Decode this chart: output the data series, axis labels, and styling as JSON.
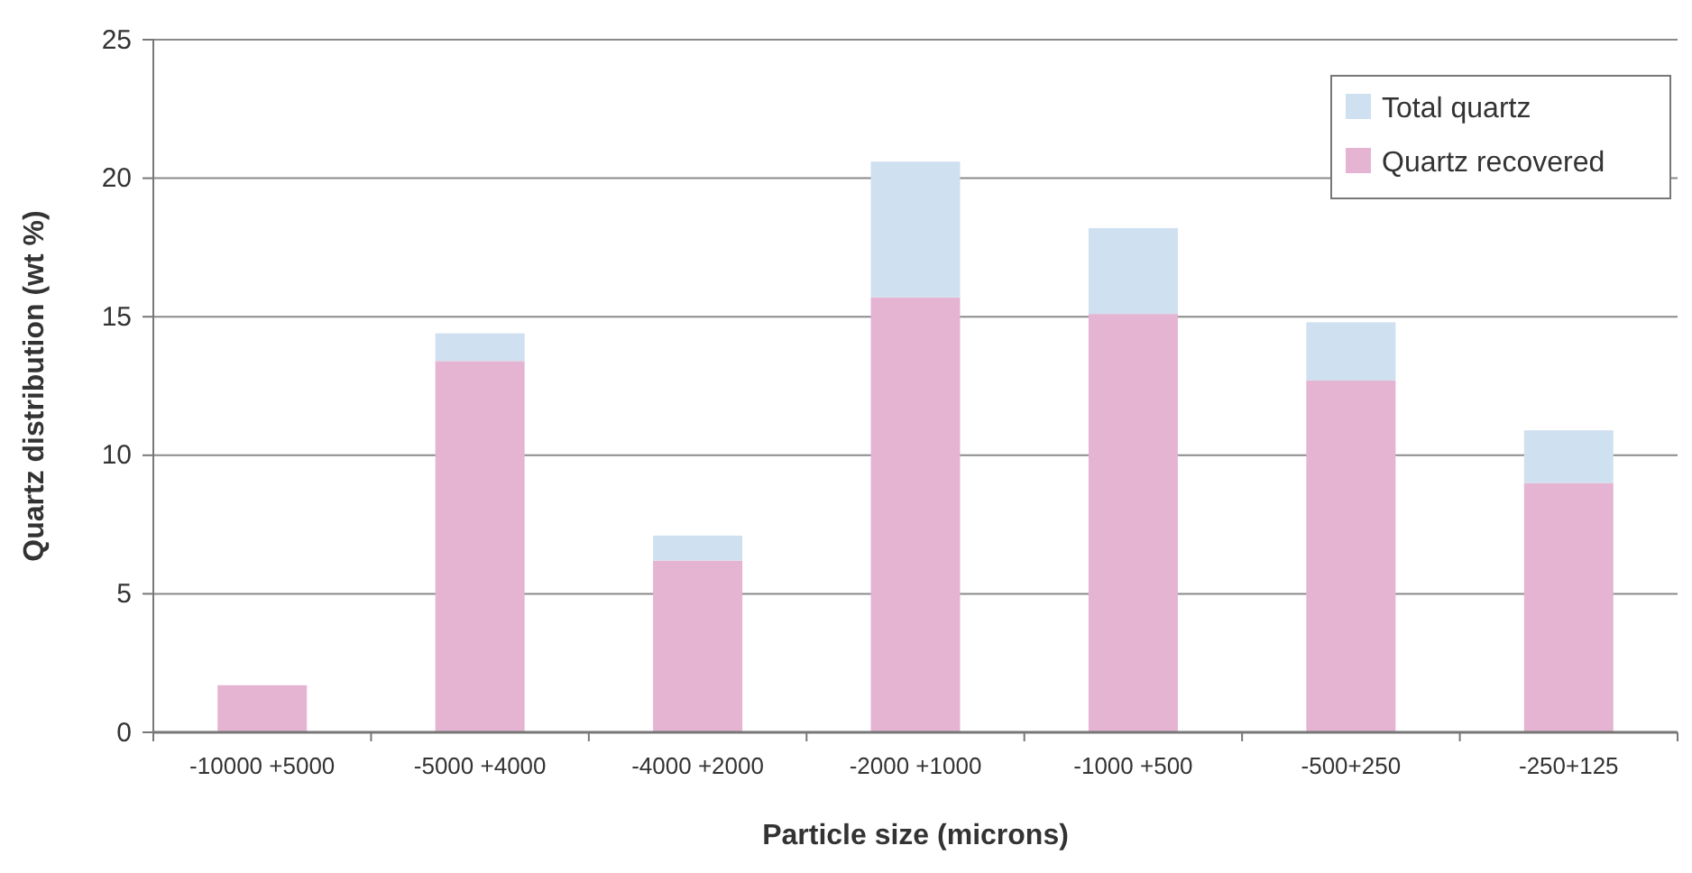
{
  "chart_data": {
    "type": "bar",
    "stacked": true,
    "xlabel": "Particle size (microns)",
    "ylabel": "Quartz distribution (wt %)",
    "categories": [
      "-10000 +5000",
      "-5000 +4000",
      "-4000 +2000",
      "-2000 +1000",
      "-1000 +500",
      "-500+250",
      "-250+125"
    ],
    "series": [
      {
        "name": "Quartz recovered",
        "color": "#e4b4d2",
        "values": [
          1.7,
          13.4,
          6.2,
          15.7,
          15.1,
          12.7,
          9.0
        ]
      },
      {
        "name": "Total quartz",
        "color": "#cfe0f0",
        "values": [
          0,
          1.0,
          0.9,
          4.9,
          3.1,
          2.1,
          1.9
        ]
      }
    ],
    "ylim": [
      0,
      25
    ],
    "yticks": [
      0,
      5,
      10,
      15,
      20,
      25
    ],
    "grid": "y",
    "legend": "top right"
  }
}
